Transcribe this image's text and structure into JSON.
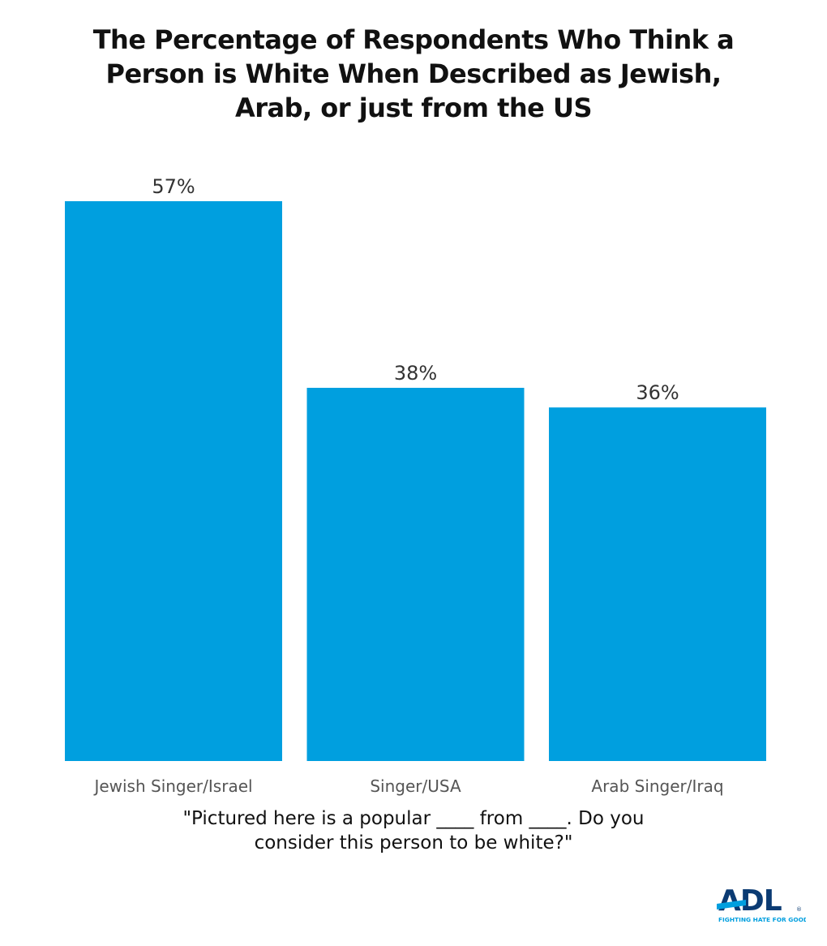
{
  "chart_data": {
    "type": "bar",
    "title": [
      "The Percentage of Respondents Who Think a",
      "Person is White When Described as Jewish,",
      "Arab, or just from the US"
    ],
    "categories": [
      "Jewish Singer/Israel",
      "Singer/USA",
      "Arab Singer/Iraq"
    ],
    "values": [
      57,
      38,
      36
    ],
    "value_labels": [
      "57%",
      "38%",
      "36%"
    ],
    "xlabel": [
      "\"Pictured here is a popular ____ from ____. Do you",
      "consider this person to be white?\""
    ],
    "ylabel": "",
    "ylim": [
      0,
      57
    ],
    "grid": false,
    "bar_color": "#009FDF"
  },
  "logo": {
    "text": "ADL",
    "tagline": "FIGHTING HATE FOR GOOD",
    "registered": "®",
    "color": "#0B3B73",
    "accent": "#009FDF"
  }
}
